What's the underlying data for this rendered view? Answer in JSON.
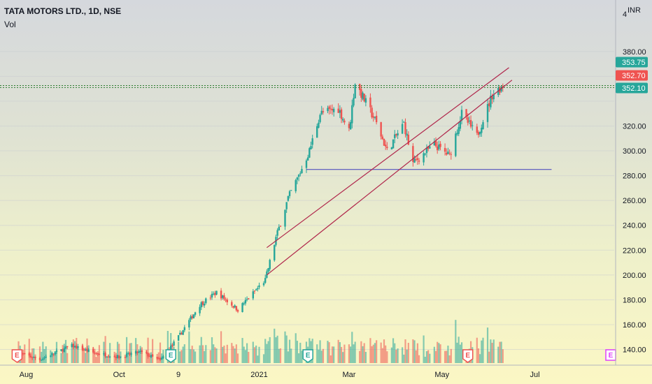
{
  "header": {
    "symbol_line": "TATA MOTORS LTD., 1D, NSE",
    "volume_label": "Vol"
  },
  "colors": {
    "up": "#26a69a",
    "down": "#ef5350",
    "channel": "#b0264b",
    "support": "#3f3cbb",
    "resistance_band": "#2e7d32"
  },
  "price_axis": {
    "currency": "INR",
    "top_label": "4",
    "ticks": [
      "380.00",
      "320.00",
      "300.00",
      "280.00",
      "260.00",
      "240.00",
      "220.00",
      "200.00",
      "180.00",
      "160.00",
      "140.00"
    ],
    "badges": [
      {
        "label": "353.75",
        "color": "#26a69a"
      },
      {
        "label": "352.70",
        "color": "#ef5350"
      },
      {
        "label": "352.10",
        "color": "#26a69a"
      }
    ]
  },
  "time_axis": {
    "labels": [
      "Aug",
      "Oct",
      "9",
      "2021",
      "Mar",
      "May",
      "Jul"
    ]
  },
  "earnings_markers": [
    {
      "label": "E",
      "color": "#ef5350"
    },
    {
      "label": "E",
      "color": "#26a69a"
    },
    {
      "label": "E",
      "color": "#26a69a"
    },
    {
      "label": "E",
      "color": "#ef5350"
    },
    {
      "label": "E",
      "color": "#e040fb"
    }
  ],
  "chart_data": {
    "type": "candlestick",
    "title": "TATA MOTORS LTD., 1D, NSE",
    "interval": "1D",
    "currency": "INR",
    "yticks": [
      140,
      160,
      180,
      200,
      220,
      240,
      260,
      280,
      300,
      320,
      340,
      360,
      380
    ],
    "ylim": [
      130,
      400
    ],
    "xticks": [
      "Aug",
      "Oct",
      "9",
      "2021",
      "Mar",
      "May",
      "Jul"
    ],
    "price_path": [
      {
        "date": "2020-07-27",
        "close": 137
      },
      {
        "date": "2020-08-10",
        "close": 132
      },
      {
        "date": "2020-08-31",
        "close": 143
      },
      {
        "date": "2020-09-15",
        "close": 137
      },
      {
        "date": "2020-10-01",
        "close": 134
      },
      {
        "date": "2020-10-15",
        "close": 138
      },
      {
        "date": "2020-10-28",
        "close": 131
      },
      {
        "date": "2020-11-09",
        "close": 150
      },
      {
        "date": "2020-11-23",
        "close": 176
      },
      {
        "date": "2020-12-04",
        "close": 186
      },
      {
        "date": "2020-12-18",
        "close": 172
      },
      {
        "date": "2021-01-05",
        "close": 196
      },
      {
        "date": "2021-01-12",
        "close": 230
      },
      {
        "date": "2021-01-20",
        "close": 262
      },
      {
        "date": "2021-01-27",
        "close": 280
      },
      {
        "date": "2021-02-03",
        "close": 300
      },
      {
        "date": "2021-02-10",
        "close": 330
      },
      {
        "date": "2021-02-22",
        "close": 334
      },
      {
        "date": "2021-03-01",
        "close": 316
      },
      {
        "date": "2021-03-05",
        "close": 355
      },
      {
        "date": "2021-03-18",
        "close": 325
      },
      {
        "date": "2021-03-26",
        "close": 300
      },
      {
        "date": "2021-04-06",
        "close": 322
      },
      {
        "date": "2021-04-12",
        "close": 290
      },
      {
        "date": "2021-04-26",
        "close": 305
      },
      {
        "date": "2021-05-06",
        "close": 296
      },
      {
        "date": "2021-05-14",
        "close": 330
      },
      {
        "date": "2021-05-24",
        "close": 312
      },
      {
        "date": "2021-06-03",
        "close": 345
      },
      {
        "date": "2021-06-10",
        "close": 352.7
      }
    ],
    "levels": {
      "support": 285,
      "resistance_high": 353.75,
      "resistance_low": 352.1,
      "last_close": 352.7
    }
  }
}
